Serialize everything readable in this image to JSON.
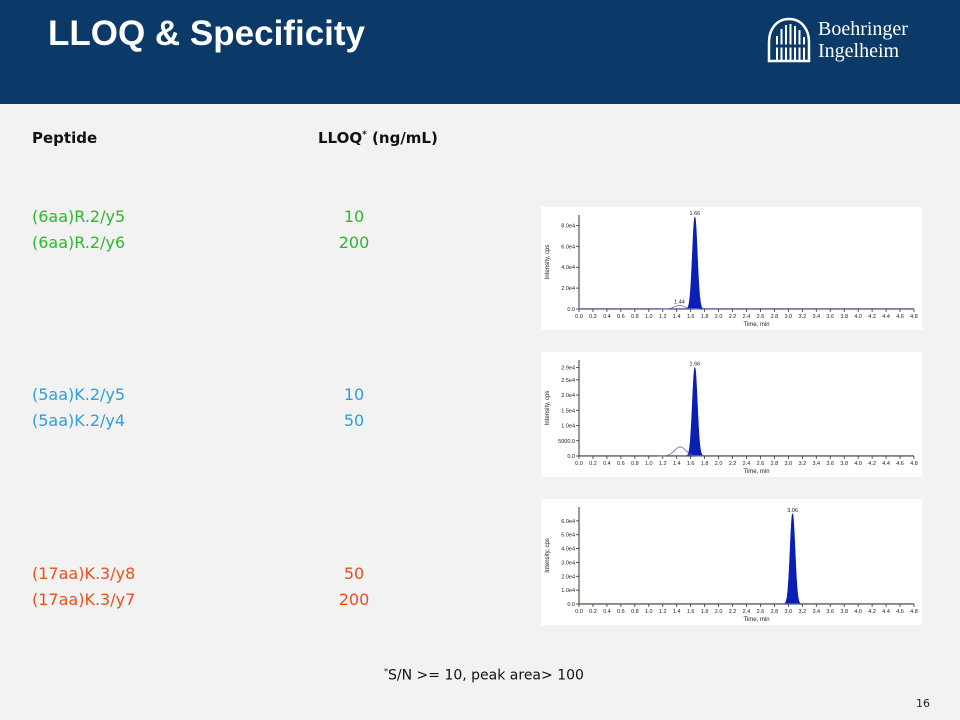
{
  "slide": {
    "title": "LLOQ & Specificity",
    "logo": {
      "line1": "Boehringer",
      "line2": "Ingelheim"
    },
    "header_color": "#0b3a68"
  },
  "table": {
    "col_peptide": "Peptide",
    "col_lloq": "LLOQ",
    "col_lloq_mark": "*",
    "col_lloq_unit": "(ng/mL)",
    "rows": [
      {
        "peptide": "(6aa)R.2/y5",
        "lloq": "10",
        "color": "#2eb82e"
      },
      {
        "peptide": "(6aa)R.2/y6",
        "lloq": "200",
        "color": "#2eb82e"
      },
      {
        "peptide": "(5aa)K.2/y5",
        "lloq": "10",
        "color": "#2e9fd8"
      },
      {
        "peptide": "(5aa)K.2/y4",
        "lloq": "50",
        "color": "#2e9fd8"
      },
      {
        "peptide": "(17aa)K.3/y8",
        "lloq": "50",
        "color": "#e8501a"
      },
      {
        "peptide": "(17aa)K.3/y7",
        "lloq": "200",
        "color": "#e8501a"
      }
    ]
  },
  "footnote": {
    "mark": "*",
    "text": "S/N >= 10, peak area> 100"
  },
  "page_number": "16",
  "chart_data": [
    {
      "type": "line",
      "xlabel": "Time, min",
      "ylabel": "Intensity, cps",
      "xlim": [
        0.0,
        4.8
      ],
      "ylim": [
        0,
        90000
      ],
      "x_ticks": [
        "0.0",
        "0.2",
        "0.4",
        "0.6",
        "0.8",
        "1.0",
        "1.2",
        "1.4",
        "1.6",
        "1.8",
        "2.0",
        "2.2",
        "2.4",
        "2.6",
        "2.8",
        "3.0",
        "3.2",
        "3.4",
        "3.6",
        "3.8",
        "4.0",
        "4.2",
        "4.4",
        "4.6",
        "4.8"
      ],
      "y_ticks": [
        {
          "v": 0,
          "label": "0.0"
        },
        {
          "v": 20000,
          "label": "2.0e4"
        },
        {
          "v": 40000,
          "label": "4.0e4"
        },
        {
          "v": 60000,
          "label": "6.0e4"
        },
        {
          "v": 80000,
          "label": "8.0e4"
        }
      ],
      "series": [
        {
          "kind": "filled_peak",
          "center": 1.66,
          "height": 88000,
          "width": 0.035,
          "color": "#0a1fb4"
        },
        {
          "kind": "line_peak",
          "center": 1.44,
          "height": 3500,
          "width": 0.07,
          "color": "#6a6aaa"
        }
      ],
      "annotations": [
        {
          "x": 1.66,
          "y": 88000,
          "text": "1.66"
        },
        {
          "x": 1.44,
          "y": 3500,
          "text": "1.44"
        }
      ]
    },
    {
      "type": "line",
      "xlabel": "Time, min",
      "ylabel": "Intensity, cps",
      "xlim": [
        0.0,
        4.8
      ],
      "ylim": [
        0,
        31500
      ],
      "x_ticks": [
        "0.0",
        "0.2",
        "0.4",
        "0.6",
        "0.8",
        "1.0",
        "1.2",
        "1.4",
        "1.6",
        "1.8",
        "2.0",
        "2.2",
        "2.4",
        "2.6",
        "2.8",
        "3.0",
        "3.2",
        "3.4",
        "3.6",
        "3.8",
        "4.0",
        "4.2",
        "4.4",
        "4.6",
        "4.8"
      ],
      "y_ticks": [
        {
          "v": 0,
          "label": "0.0"
        },
        {
          "v": 5000,
          "label": "5000.0"
        },
        {
          "v": 10000,
          "label": "1.0e4"
        },
        {
          "v": 15000,
          "label": "1.5e4"
        },
        {
          "v": 20000,
          "label": "2.0e4"
        },
        {
          "v": 25000,
          "label": "2.5e4"
        },
        {
          "v": 29000,
          "label": "2.9e4"
        }
      ],
      "series": [
        {
          "kind": "filled_peak",
          "center": 1.66,
          "height": 29000,
          "width": 0.035,
          "color": "#0a1fb4"
        },
        {
          "kind": "line_peak",
          "center": 1.45,
          "height": 3000,
          "width": 0.08,
          "color": "#6a6aaa"
        }
      ],
      "annotations": [
        {
          "x": 1.66,
          "y": 29000,
          "text": "1.66"
        }
      ]
    },
    {
      "type": "line",
      "xlabel": "Time, min",
      "ylabel": "Intensity, cps",
      "xlim": [
        0.0,
        4.8
      ],
      "ylim": [
        0,
        70000
      ],
      "x_ticks": [
        "0.0",
        "0.2",
        "0.4",
        "0.6",
        "0.8",
        "1.0",
        "1.2",
        "1.4",
        "1.6",
        "1.8",
        "2.0",
        "2.2",
        "2.4",
        "2.6",
        "2.8",
        "3.0",
        "3.2",
        "3.4",
        "3.6",
        "3.8",
        "4.0",
        "4.2",
        "4.4",
        "4.6",
        "4.8"
      ],
      "y_ticks": [
        {
          "v": 0,
          "label": "0.0"
        },
        {
          "v": 10000,
          "label": "1.0e4"
        },
        {
          "v": 20000,
          "label": "2.0e4"
        },
        {
          "v": 30000,
          "label": "3.0e4"
        },
        {
          "v": 40000,
          "label": "4.0e4"
        },
        {
          "v": 50000,
          "label": "5.0e4"
        },
        {
          "v": 60000,
          "label": "6.0e4"
        }
      ],
      "series": [
        {
          "kind": "filled_peak",
          "center": 3.06,
          "height": 65000,
          "width": 0.035,
          "color": "#0a1fb4"
        }
      ],
      "annotations": [
        {
          "x": 3.06,
          "y": 65000,
          "text": "3.06"
        }
      ]
    }
  ]
}
